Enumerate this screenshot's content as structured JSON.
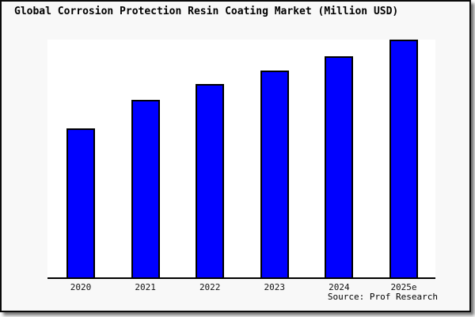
{
  "source_label": "Source: Prof Research",
  "colors": {
    "bar_fill": "#0000ff",
    "bar_border": "#000000",
    "frame_background": "#f8f8f8",
    "plot_background": "#ffffff",
    "axis": "#000000",
    "frame_border": "#0a0a0a",
    "text": "#000000"
  },
  "chart_data": {
    "type": "bar",
    "title": "Global Corrosion Protection Resin Coating Market (Million USD)",
    "categories": [
      "2020",
      "2021",
      "2022",
      "2023",
      "2024",
      "2025e"
    ],
    "values": [
      188,
      224,
      244,
      261,
      279,
      300
    ],
    "values_are_estimates": "no numeric y-axis shown; values are relative bar heights read from pixels",
    "xlabel": "",
    "ylabel": "",
    "ylim": [
      0,
      300
    ],
    "grid": false,
    "legend": false,
    "annotations": [
      "Source: Prof Research"
    ]
  }
}
